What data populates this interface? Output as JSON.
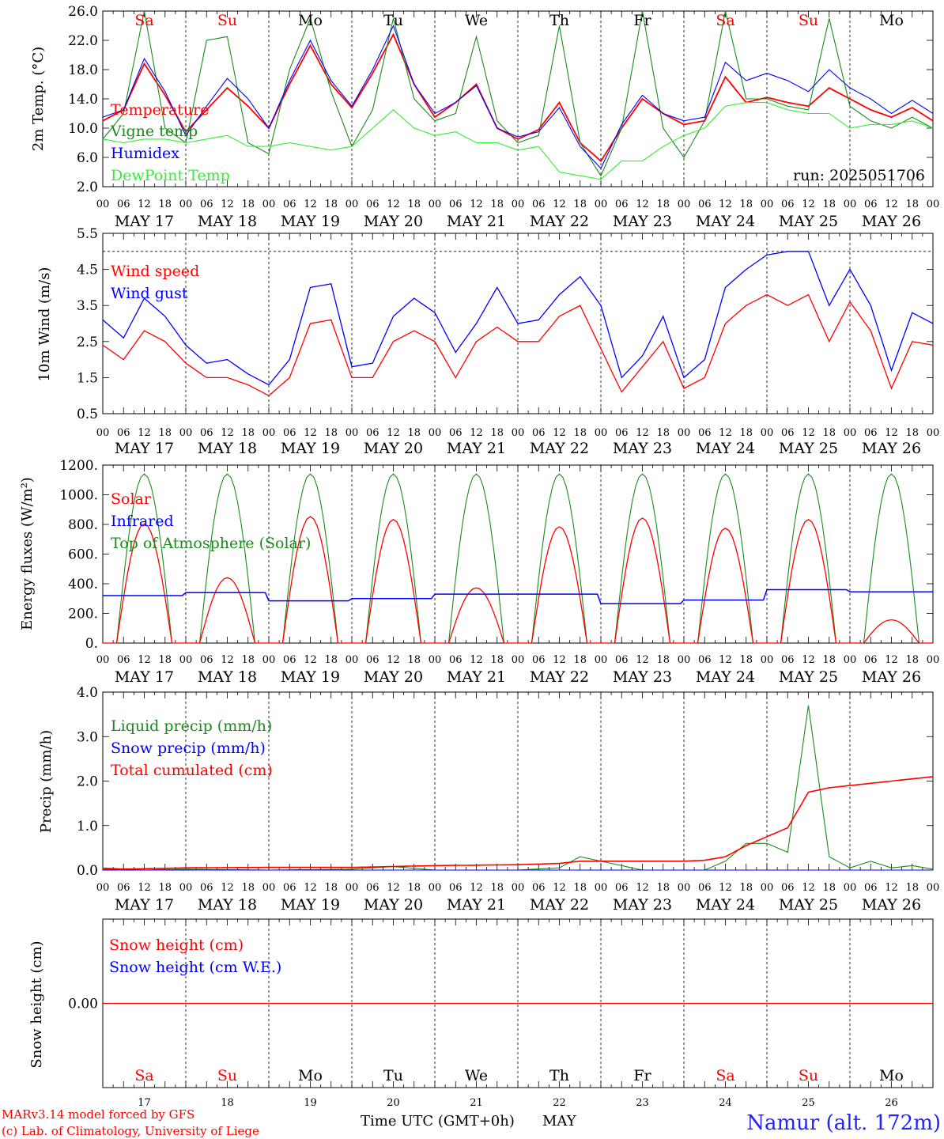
{
  "days": [
    "Sa",
    "Su",
    "Mo",
    "Tu",
    "We",
    "Th",
    "Fr",
    "Sa",
    "Su",
    "Mo"
  ],
  "weekend_days": [
    0,
    1,
    7,
    8
  ],
  "date_labels": [
    "MAY 17",
    "MAY 18",
    "MAY 19",
    "MAY 20",
    "MAY 21",
    "MAY 22",
    "MAY 23",
    "MAY 24",
    "MAY 25",
    "MAY 26"
  ],
  "hour_ticks": [
    "00",
    "06",
    "12",
    "18"
  ],
  "day_numbers": [
    "17",
    "18",
    "19",
    "20",
    "21",
    "22",
    "23",
    "24",
    "25",
    "26"
  ],
  "colors": {
    "red": "#ff0000",
    "green": "#1a8a1a",
    "blue": "#0000ff",
    "lightgreen": "#33ee33",
    "weekend": "#ff0000",
    "weekday": "#000000"
  },
  "footer": {
    "model_line1": "MARv3.14 model forced by GFS",
    "model_line2": "(c) Lab. of Climatology, University of Liege",
    "time_axis": "Time UTC (GMT+0h)",
    "month": "MAY",
    "station": "Namur (alt. 172m)"
  },
  "chart_data": [
    {
      "type": "line",
      "ylabel": "2m Temp. (°C)",
      "ylim": [
        2,
        26
      ],
      "yticks": [
        "2.0",
        "6.0",
        "10.0",
        "14.0",
        "18.0",
        "22.0",
        "26.0"
      ],
      "run_label": "run: 2025051706",
      "x_hours": [
        0,
        6,
        12,
        18,
        24,
        30,
        36,
        42,
        48,
        54,
        60,
        66,
        72,
        78,
        84,
        90,
        96,
        102,
        108,
        114,
        120,
        126,
        132,
        138,
        144,
        150,
        156,
        162,
        168,
        174,
        180,
        186,
        192,
        198,
        204,
        210,
        216,
        222,
        228,
        234,
        240
      ],
      "series": [
        {
          "name": "Temperature",
          "color": "red",
          "values": [
            11,
            12.5,
            18.8,
            14.5,
            9.5,
            12.5,
            15.5,
            13,
            10,
            16,
            21.3,
            16,
            12.8,
            17.5,
            22.8,
            16,
            11.5,
            13.5,
            16,
            10,
            8.5,
            9.8,
            13.5,
            8,
            5.5,
            10,
            14,
            12,
            10.5,
            11,
            17,
            13.5,
            14.2,
            13.5,
            13,
            15.5,
            14,
            12.5,
            11.5,
            12.8,
            11
          ]
        },
        {
          "name": "Vigne temp",
          "color": "green",
          "values": [
            8.5,
            12,
            26,
            10,
            8,
            22,
            22.5,
            8,
            6.5,
            18,
            25,
            15,
            7.5,
            12.5,
            25,
            14,
            11,
            12,
            22.5,
            11,
            8,
            9,
            24,
            8,
            3.5,
            10,
            26,
            10,
            6,
            11,
            26,
            14,
            14,
            13,
            12.5,
            25,
            13,
            11,
            10,
            11.5,
            10
          ]
        },
        {
          "name": "Humidex",
          "color": "blue",
          "values": [
            11.5,
            12.5,
            19.5,
            15,
            9,
            13,
            16.8,
            14,
            10,
            16.5,
            22,
            16.5,
            13,
            18,
            24,
            16,
            12,
            13.5,
            15.8,
            10,
            8.8,
            9.5,
            12.8,
            7.5,
            4.5,
            10.5,
            14.5,
            12,
            11,
            11.5,
            19,
            16.5,
            17.5,
            16.5,
            15,
            18,
            15.5,
            14,
            12,
            13.8,
            12
          ]
        },
        {
          "name": "DewPoint Temp",
          "color": "lightgreen",
          "values": [
            8.5,
            8,
            8.5,
            8.5,
            8,
            8.5,
            9,
            7.5,
            7.5,
            8,
            7.5,
            7,
            7.5,
            10,
            12.5,
            10,
            9,
            9.5,
            8,
            8,
            7,
            7.5,
            4,
            3.5,
            3,
            5.5,
            5.5,
            7.5,
            9,
            10,
            13,
            13.5,
            13.5,
            12.5,
            12,
            12,
            10,
            10.5,
            10.5,
            11,
            10
          ]
        }
      ]
    },
    {
      "type": "line",
      "ylabel": "10m Wind (m/s)",
      "ylim": [
        0.5,
        5.5
      ],
      "yticks": [
        "0.5",
        "1.5",
        "2.5",
        "3.5",
        "4.5",
        "5.5"
      ],
      "x_hours": [
        0,
        6,
        12,
        18,
        24,
        30,
        36,
        42,
        48,
        54,
        60,
        66,
        72,
        78,
        84,
        90,
        96,
        102,
        108,
        114,
        120,
        126,
        132,
        138,
        144,
        150,
        156,
        162,
        168,
        174,
        180,
        186,
        192,
        198,
        204,
        210,
        216,
        222,
        228,
        234,
        240
      ],
      "series": [
        {
          "name": "Wind speed",
          "color": "red",
          "values": [
            2.4,
            2,
            2.8,
            2.5,
            1.9,
            1.5,
            1.5,
            1.3,
            1,
            1.5,
            3,
            3.1,
            1.5,
            1.5,
            2.5,
            2.8,
            2.5,
            1.5,
            2.5,
            2.9,
            2.5,
            2.5,
            3.2,
            3.5,
            2.3,
            1.1,
            1.8,
            2.5,
            1.2,
            1.5,
            3,
            3.5,
            3.8,
            3.5,
            3.8,
            2.5,
            3.6,
            2.8,
            1.2,
            2.5,
            2.4
          ]
        },
        {
          "name": "Wind gust",
          "color": "blue",
          "values": [
            3.1,
            2.6,
            3.7,
            3.2,
            2.4,
            1.9,
            2,
            1.6,
            1.3,
            2,
            4,
            4.1,
            1.8,
            1.9,
            3.2,
            3.7,
            3.3,
            2.2,
            3,
            4,
            3,
            3.1,
            3.8,
            4.3,
            3.5,
            1.5,
            2.1,
            3.2,
            1.5,
            2,
            4,
            4.5,
            4.9,
            5,
            5,
            3.5,
            4.5,
            3.5,
            1.7,
            3.3,
            3
          ]
        }
      ],
      "dashed_reference": 5.0
    },
    {
      "type": "line",
      "ylabel": "Energy fluxes (W/m²)",
      "ylim": [
        0,
        1200
      ],
      "yticks": [
        "0.",
        "200.",
        "400.",
        "600.",
        "800.",
        "1000.",
        "1200."
      ],
      "series": [
        {
          "name": "Solar",
          "color": "red",
          "day_peaks": [
            820,
            450,
            870,
            850,
            380,
            800,
            860,
            790,
            850,
            160
          ]
        },
        {
          "name": "Infrared",
          "color": "blue",
          "day_levels": [
            320,
            340,
            285,
            300,
            330,
            330,
            265,
            290,
            360,
            345
          ]
        },
        {
          "name": "Top of Atmosphere (Solar)",
          "color": "green",
          "peak": 1140
        }
      ]
    },
    {
      "type": "line",
      "ylabel": "Precip (mm/h)",
      "ylim": [
        0,
        4
      ],
      "yticks": [
        "0.0",
        "1.0",
        "2.0",
        "3.0",
        "4.0"
      ],
      "x_hours": [
        0,
        12,
        24,
        48,
        72,
        84,
        96,
        120,
        132,
        138,
        156,
        168,
        174,
        180,
        186,
        192,
        198,
        204,
        210,
        216,
        222,
        228,
        234,
        240
      ],
      "series": [
        {
          "name": "Liquid precip (mm/h)",
          "color": "green",
          "values": [
            0.05,
            0,
            0.02,
            0,
            0.02,
            0.08,
            0,
            0,
            0.05,
            0.3,
            0,
            0,
            0,
            0.2,
            0.6,
            0.6,
            0.4,
            3.7,
            0.3,
            0.05,
            0.2,
            0.05,
            0.1,
            0.02
          ]
        },
        {
          "name": "Snow precip (mm/h)",
          "color": "blue",
          "values": [
            0,
            0,
            0,
            0,
            0,
            0,
            0,
            0,
            0,
            0,
            0,
            0,
            0,
            0,
            0,
            0,
            0,
            0,
            0,
            0,
            0,
            0,
            0,
            0
          ]
        },
        {
          "name": "Total cumulated (cm)",
          "color": "red",
          "values": [
            0.02,
            0.03,
            0.05,
            0.06,
            0.06,
            0.08,
            0.1,
            0.12,
            0.15,
            0.2,
            0.2,
            0.2,
            0.22,
            0.3,
            0.55,
            0.75,
            0.95,
            1.75,
            1.85,
            1.9,
            1.95,
            2.0,
            2.05,
            2.1
          ]
        }
      ]
    },
    {
      "type": "line",
      "ylabel": "Snow height (cm)",
      "yticks": [
        "0.00"
      ],
      "series": [
        {
          "name": "Snow height (cm)",
          "color": "red",
          "value": 0
        },
        {
          "name": "Snow height (cm W.E.)",
          "color": "blue",
          "value": 0
        }
      ]
    }
  ]
}
